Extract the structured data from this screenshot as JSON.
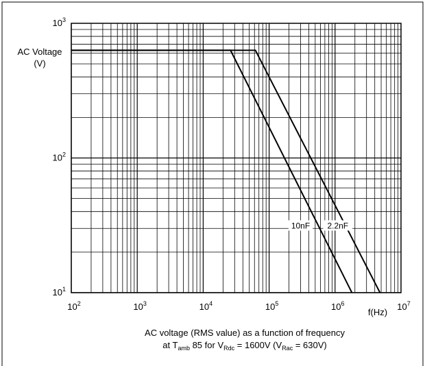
{
  "chart_data": {
    "type": "line",
    "title": "",
    "xlabel": "f(Hz)",
    "ylabel_line1": "AC Voltage",
    "ylabel_line2": "(V)",
    "x_scale": "log",
    "y_scale": "log",
    "xlim": [
      100,
      10000000
    ],
    "ylim": [
      10,
      1000
    ],
    "x_ticks": [
      {
        "base": "10",
        "exp": "2",
        "value": 100
      },
      {
        "base": "10",
        "exp": "3",
        "value": 1000
      },
      {
        "base": "10",
        "exp": "4",
        "value": 10000
      },
      {
        "base": "10",
        "exp": "5",
        "value": 100000
      },
      {
        "base": "10",
        "exp": "6",
        "value": 1000000
      },
      {
        "base": "10",
        "exp": "7",
        "value": 10000000
      }
    ],
    "y_ticks": [
      {
        "base": "10",
        "exp": "1",
        "value": 10
      },
      {
        "base": "10",
        "exp": "2",
        "value": 100
      },
      {
        "base": "10",
        "exp": "3",
        "value": 1000
      }
    ],
    "grid": true,
    "series": [
      {
        "name": "10nF",
        "label_at": {
          "x": 300000,
          "y": 31
        },
        "points": [
          [
            100,
            630
          ],
          [
            26000,
            630
          ],
          [
            1800000,
            10
          ]
        ]
      },
      {
        "name": "2.2nF",
        "label_at": {
          "x": 1100000,
          "y": 31
        },
        "points": [
          [
            100,
            630
          ],
          [
            62000,
            630
          ],
          [
            4800000,
            10
          ]
        ]
      }
    ]
  },
  "caption": {
    "line1": "AC voltage (RMS value) as a function of frequency",
    "line2_prefix": "at T",
    "line2_tsub": "amb",
    "line2_temp": "85",
    "line2_for": "for V",
    "line2_vsub1": "Rdc",
    "line2_mid": " = 1600V (V",
    "line2_vsub2": "Rac",
    "line2_end": " = 630V)"
  }
}
